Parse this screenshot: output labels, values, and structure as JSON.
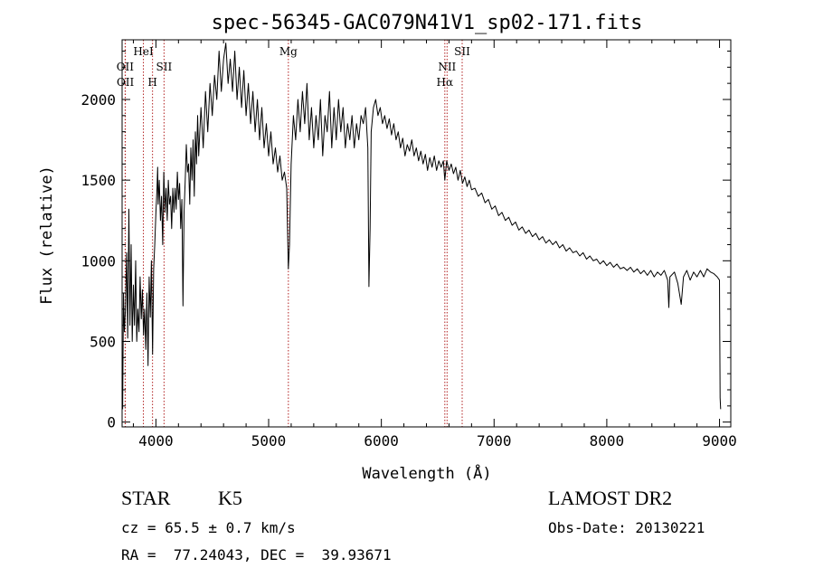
{
  "chart_data": {
    "type": "line",
    "title": "spec-56345-GAC079N41V1_sp02-171.fits",
    "xlabel": "Wavelength (Å)",
    "ylabel": "Flux (relative)",
    "xlim": [
      3700,
      9100
    ],
    "ylim": [
      -30,
      2370
    ],
    "xticks": [
      4000,
      5000,
      6000,
      7000,
      8000,
      9000
    ],
    "yticks": [
      0,
      500,
      1000,
      1500,
      2000
    ],
    "grid": false,
    "line_color": "#000000",
    "marker_line_color": "#b22222",
    "spectral_lines": [
      {
        "name": "OII",
        "wavelength": 3727,
        "label_pos": "low"
      },
      {
        "name": "OII",
        "wavelength": 3729,
        "label_pos": "mid"
      },
      {
        "name": "HeI",
        "wavelength": 3889,
        "label_pos": "top"
      },
      {
        "name": "H",
        "wavelength": 3970,
        "label_pos": "mid"
      },
      {
        "name": "SII",
        "wavelength": 4072,
        "label_pos": "low"
      },
      {
        "name": "Mg",
        "wavelength": 5175,
        "label_pos": "top"
      },
      {
        "name": "NII",
        "wavelength": 6583,
        "label_pos": "low"
      },
      {
        "name": "Hα",
        "wavelength": 6563,
        "label_pos": "mid"
      },
      {
        "name": "SII",
        "wavelength": 6717,
        "label_pos": "top"
      }
    ],
    "series": [
      {
        "points": [
          [
            3705,
            80
          ],
          [
            3712,
            800
          ],
          [
            3720,
            560
          ],
          [
            3730,
            700
          ],
          [
            3740,
            1050
          ],
          [
            3750,
            520
          ],
          [
            3760,
            1320
          ],
          [
            3770,
            600
          ],
          [
            3780,
            1100
          ],
          [
            3790,
            500
          ],
          [
            3800,
            850
          ],
          [
            3810,
            600
          ],
          [
            3820,
            1000
          ],
          [
            3830,
            500
          ],
          [
            3840,
            700
          ],
          [
            3850,
            560
          ],
          [
            3860,
            900
          ],
          [
            3870,
            640
          ],
          [
            3880,
            820
          ],
          [
            3890,
            540
          ],
          [
            3900,
            700
          ],
          [
            3910,
            450
          ],
          [
            3920,
            800
          ],
          [
            3930,
            350
          ],
          [
            3940,
            900
          ],
          [
            3950,
            650
          ],
          [
            3960,
            1000
          ],
          [
            3970,
            420
          ],
          [
            3980,
            950
          ],
          [
            3990,
            1100
          ],
          [
            4000,
            1300
          ],
          [
            4010,
            1450
          ],
          [
            4015,
            1580
          ],
          [
            4020,
            1350
          ],
          [
            4030,
            1500
          ],
          [
            4040,
            1250
          ],
          [
            4050,
            1400
          ],
          [
            4060,
            1100
          ],
          [
            4070,
            1550
          ],
          [
            4080,
            1300
          ],
          [
            4090,
            1450
          ],
          [
            4100,
            1250
          ],
          [
            4110,
            1500
          ],
          [
            4120,
            1350
          ],
          [
            4130,
            1400
          ],
          [
            4140,
            1200
          ],
          [
            4150,
            1450
          ],
          [
            4160,
            1300
          ],
          [
            4170,
            1450
          ],
          [
            4180,
            1320
          ],
          [
            4190,
            1550
          ],
          [
            4200,
            1380
          ],
          [
            4210,
            1480
          ],
          [
            4220,
            1200
          ],
          [
            4230,
            1380
          ],
          [
            4240,
            720
          ],
          [
            4250,
            1300
          ],
          [
            4260,
            1500
          ],
          [
            4270,
            1720
          ],
          [
            4280,
            1550
          ],
          [
            4290,
            1600
          ],
          [
            4300,
            1350
          ],
          [
            4310,
            1700
          ],
          [
            4320,
            1500
          ],
          [
            4330,
            1750
          ],
          [
            4340,
            1400
          ],
          [
            4350,
            1800
          ],
          [
            4360,
            1600
          ],
          [
            4370,
            1900
          ],
          [
            4380,
            1650
          ],
          [
            4400,
            1950
          ],
          [
            4420,
            1700
          ],
          [
            4440,
            2050
          ],
          [
            4460,
            1800
          ],
          [
            4480,
            2100
          ],
          [
            4500,
            1900
          ],
          [
            4520,
            2150
          ],
          [
            4540,
            2000
          ],
          [
            4560,
            2300
          ],
          [
            4580,
            2050
          ],
          [
            4600,
            2250
          ],
          [
            4620,
            2350
          ],
          [
            4640,
            2100
          ],
          [
            4660,
            2250
          ],
          [
            4680,
            2050
          ],
          [
            4700,
            2300
          ],
          [
            4720,
            2000
          ],
          [
            4740,
            2200
          ],
          [
            4760,
            1950
          ],
          [
            4780,
            2180
          ],
          [
            4800,
            1900
          ],
          [
            4820,
            2100
          ],
          [
            4840,
            1850
          ],
          [
            4860,
            2050
          ],
          [
            4880,
            1800
          ],
          [
            4900,
            2000
          ],
          [
            4920,
            1750
          ],
          [
            4940,
            1950
          ],
          [
            4960,
            1700
          ],
          [
            4980,
            1850
          ],
          [
            5000,
            1650
          ],
          [
            5020,
            1800
          ],
          [
            5040,
            1600
          ],
          [
            5060,
            1700
          ],
          [
            5080,
            1550
          ],
          [
            5100,
            1650
          ],
          [
            5120,
            1500
          ],
          [
            5140,
            1550
          ],
          [
            5160,
            1450
          ],
          [
            5175,
            950
          ],
          [
            5185,
            1100
          ],
          [
            5200,
            1600
          ],
          [
            5220,
            1900
          ],
          [
            5240,
            1750
          ],
          [
            5260,
            2000
          ],
          [
            5280,
            1800
          ],
          [
            5300,
            2050
          ],
          [
            5320,
            1850
          ],
          [
            5340,
            2100
          ],
          [
            5360,
            1750
          ],
          [
            5380,
            1950
          ],
          [
            5400,
            1700
          ],
          [
            5420,
            1900
          ],
          [
            5440,
            1750
          ],
          [
            5460,
            2000
          ],
          [
            5480,
            1650
          ],
          [
            5500,
            1900
          ],
          [
            5520,
            1800
          ],
          [
            5540,
            2050
          ],
          [
            5560,
            1700
          ],
          [
            5580,
            1950
          ],
          [
            5600,
            1750
          ],
          [
            5620,
            2000
          ],
          [
            5640,
            1800
          ],
          [
            5660,
            1950
          ],
          [
            5680,
            1700
          ],
          [
            5700,
            1850
          ],
          [
            5720,
            1750
          ],
          [
            5740,
            1900
          ],
          [
            5760,
            1700
          ],
          [
            5780,
            1850
          ],
          [
            5800,
            1750
          ],
          [
            5820,
            1900
          ],
          [
            5840,
            1850
          ],
          [
            5860,
            1950
          ],
          [
            5880,
            1700
          ],
          [
            5890,
            840
          ],
          [
            5900,
            1200
          ],
          [
            5910,
            1800
          ],
          [
            5930,
            1950
          ],
          [
            5950,
            2000
          ],
          [
            5970,
            1900
          ],
          [
            5990,
            1950
          ],
          [
            6010,
            1850
          ],
          [
            6030,
            1900
          ],
          [
            6050,
            1820
          ],
          [
            6070,
            1880
          ],
          [
            6090,
            1780
          ],
          [
            6110,
            1850
          ],
          [
            6130,
            1750
          ],
          [
            6150,
            1800
          ],
          [
            6170,
            1700
          ],
          [
            6190,
            1760
          ],
          [
            6210,
            1650
          ],
          [
            6230,
            1720
          ],
          [
            6250,
            1680
          ],
          [
            6270,
            1750
          ],
          [
            6290,
            1650
          ],
          [
            6310,
            1700
          ],
          [
            6330,
            1620
          ],
          [
            6350,
            1680
          ],
          [
            6370,
            1600
          ],
          [
            6390,
            1660
          ],
          [
            6410,
            1560
          ],
          [
            6430,
            1640
          ],
          [
            6450,
            1580
          ],
          [
            6470,
            1650
          ],
          [
            6490,
            1560
          ],
          [
            6510,
            1620
          ],
          [
            6530,
            1580
          ],
          [
            6550,
            1620
          ],
          [
            6563,
            1500
          ],
          [
            6580,
            1620
          ],
          [
            6600,
            1560
          ],
          [
            6620,
            1600
          ],
          [
            6640,
            1540
          ],
          [
            6660,
            1580
          ],
          [
            6680,
            1500
          ],
          [
            6700,
            1560
          ],
          [
            6720,
            1480
          ],
          [
            6740,
            1520
          ],
          [
            6760,
            1460
          ],
          [
            6780,
            1500
          ],
          [
            6800,
            1440
          ],
          [
            6830,
            1450
          ],
          [
            6860,
            1400
          ],
          [
            6890,
            1420
          ],
          [
            6920,
            1360
          ],
          [
            6950,
            1380
          ],
          [
            6980,
            1320
          ],
          [
            7010,
            1340
          ],
          [
            7040,
            1280
          ],
          [
            7070,
            1300
          ],
          [
            7100,
            1250
          ],
          [
            7130,
            1270
          ],
          [
            7160,
            1220
          ],
          [
            7190,
            1240
          ],
          [
            7220,
            1190
          ],
          [
            7250,
            1210
          ],
          [
            7280,
            1170
          ],
          [
            7310,
            1190
          ],
          [
            7340,
            1150
          ],
          [
            7370,
            1170
          ],
          [
            7400,
            1130
          ],
          [
            7430,
            1150
          ],
          [
            7460,
            1110
          ],
          [
            7490,
            1130
          ],
          [
            7520,
            1100
          ],
          [
            7550,
            1120
          ],
          [
            7580,
            1080
          ],
          [
            7610,
            1100
          ],
          [
            7640,
            1060
          ],
          [
            7670,
            1080
          ],
          [
            7700,
            1050
          ],
          [
            7730,
            1060
          ],
          [
            7760,
            1030
          ],
          [
            7790,
            1050
          ],
          [
            7820,
            1010
          ],
          [
            7850,
            1030
          ],
          [
            7880,
            1000
          ],
          [
            7910,
            1010
          ],
          [
            7940,
            980
          ],
          [
            7970,
            1000
          ],
          [
            8000,
            970
          ],
          [
            8030,
            990
          ],
          [
            8060,
            960
          ],
          [
            8090,
            980
          ],
          [
            8120,
            950
          ],
          [
            8150,
            960
          ],
          [
            8180,
            940
          ],
          [
            8210,
            960
          ],
          [
            8240,
            930
          ],
          [
            8270,
            950
          ],
          [
            8300,
            920
          ],
          [
            8330,
            940
          ],
          [
            8360,
            910
          ],
          [
            8390,
            940
          ],
          [
            8420,
            900
          ],
          [
            8450,
            930
          ],
          [
            8480,
            910
          ],
          [
            8510,
            940
          ],
          [
            8540,
            880
          ],
          [
            8550,
            710
          ],
          [
            8560,
            900
          ],
          [
            8600,
            930
          ],
          [
            8630,
            860
          ],
          [
            8660,
            730
          ],
          [
            8680,
            900
          ],
          [
            8710,
            940
          ],
          [
            8740,
            880
          ],
          [
            8770,
            930
          ],
          [
            8800,
            900
          ],
          [
            8830,
            940
          ],
          [
            8860,
            900
          ],
          [
            8890,
            950
          ],
          [
            8920,
            930
          ],
          [
            8950,
            920
          ],
          [
            8980,
            900
          ],
          [
            9000,
            880
          ],
          [
            9005,
            150
          ],
          [
            9010,
            80
          ]
        ]
      }
    ]
  },
  "info": {
    "object_class": "STAR",
    "subclass": "K5",
    "survey": "LAMOST DR2",
    "redshift": "cz = 65.5 ± 0.7 km/s",
    "obs_date": "Obs-Date: 20130221",
    "coords": "RA =  77.24043, DEC =  39.93671"
  }
}
